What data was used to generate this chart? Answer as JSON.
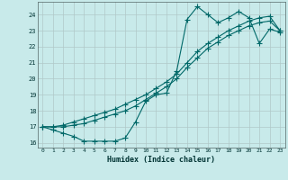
{
  "xlabel": "Humidex (Indice chaleur)",
  "bg_color": "#c8eaea",
  "grid_color": "#b0c8c8",
  "line_color": "#006868",
  "line1_x": [
    0,
    1,
    2,
    3,
    4,
    5,
    6,
    7,
    8,
    9,
    10,
    11,
    12,
    13,
    14,
    15,
    16,
    17,
    18,
    19,
    20,
    21,
    22,
    23
  ],
  "line1_y": [
    17.0,
    16.8,
    16.6,
    16.4,
    16.1,
    16.1,
    16.1,
    16.1,
    16.3,
    17.3,
    18.6,
    19.0,
    19.1,
    20.5,
    23.7,
    24.5,
    24.0,
    23.5,
    23.8,
    24.2,
    23.8,
    22.2,
    23.1,
    22.9
  ],
  "line2_x": [
    0,
    1,
    2,
    3,
    4,
    5,
    6,
    7,
    8,
    9,
    10,
    11,
    12,
    13,
    14,
    15,
    16,
    17,
    18,
    19,
    20,
    21,
    22,
    23
  ],
  "line2_y": [
    17.0,
    17.0,
    17.1,
    17.3,
    17.5,
    17.7,
    17.9,
    18.1,
    18.4,
    18.7,
    19.0,
    19.4,
    19.8,
    20.3,
    21.0,
    21.7,
    22.2,
    22.6,
    23.0,
    23.3,
    23.6,
    23.8,
    23.9,
    23.0
  ],
  "line3_x": [
    0,
    1,
    2,
    3,
    4,
    5,
    6,
    7,
    8,
    9,
    10,
    11,
    12,
    13,
    14,
    15,
    16,
    17,
    18,
    19,
    20,
    21,
    22,
    23
  ],
  "line3_y": [
    17.0,
    17.0,
    17.0,
    17.1,
    17.2,
    17.4,
    17.6,
    17.8,
    18.0,
    18.3,
    18.7,
    19.1,
    19.5,
    20.0,
    20.7,
    21.3,
    21.9,
    22.3,
    22.7,
    23.0,
    23.3,
    23.5,
    23.6,
    23.0
  ],
  "xlim": [
    -0.5,
    23.5
  ],
  "ylim": [
    15.7,
    24.8
  ],
  "yticks": [
    16,
    17,
    18,
    19,
    20,
    21,
    22,
    23,
    24
  ],
  "xticks": [
    0,
    1,
    2,
    3,
    4,
    5,
    6,
    7,
    8,
    9,
    10,
    11,
    12,
    13,
    14,
    15,
    16,
    17,
    18,
    19,
    20,
    21,
    22,
    23
  ],
  "markersize": 2.0,
  "linewidth": 0.8
}
